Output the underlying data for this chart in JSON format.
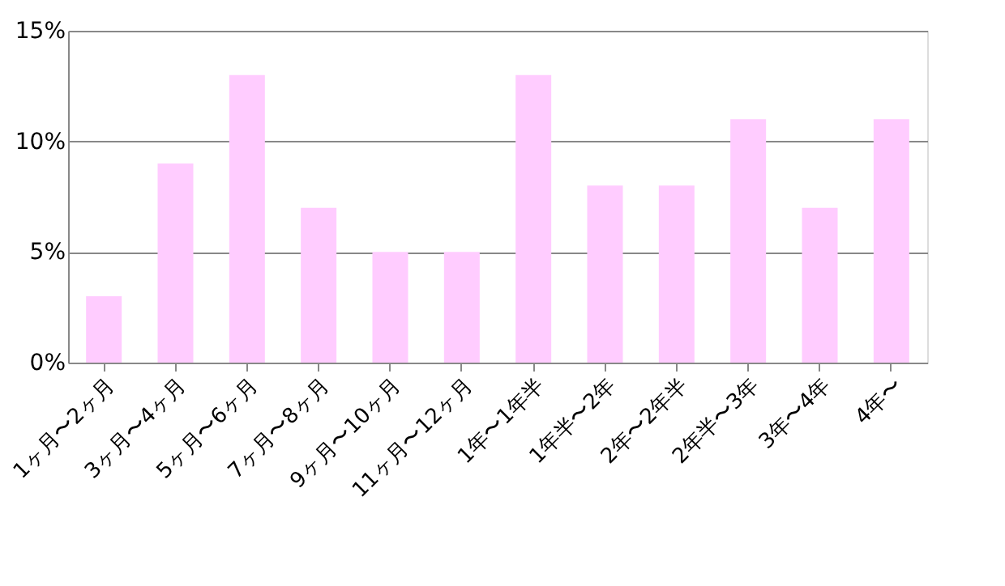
{
  "chart_data": {
    "type": "bar",
    "categories": [
      "1ヶ月〜2ヶ月",
      "3ヶ月〜4ヶ月",
      "5ヶ月〜6ヶ月",
      "7ヶ月〜8ヶ月",
      "9ヶ月〜10ヶ月",
      "11ヶ月〜12ヶ月",
      "1年〜1年半",
      "1年半〜2年",
      "2年〜2年半",
      "2年半〜3年",
      "3年〜4年",
      "4年〜"
    ],
    "values": [
      3,
      9,
      13,
      7,
      5,
      5,
      13,
      8,
      8,
      11,
      7,
      11
    ],
    "color": "#ffccff",
    "ylim": [
      0,
      15
    ],
    "yticks": [
      {
        "value": 0,
        "label": "0%"
      },
      {
        "value": 5,
        "label": "5%"
      },
      {
        "value": 10,
        "label": "10%"
      },
      {
        "value": 15,
        "label": "15%"
      }
    ],
    "grid": "y"
  }
}
